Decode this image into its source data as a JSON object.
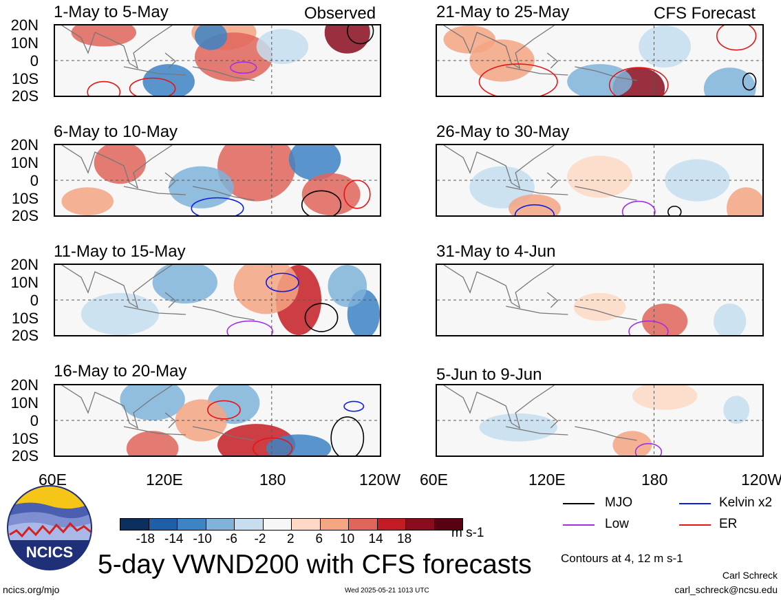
{
  "headers": {
    "observed": "Observed",
    "forecast": "CFS Forecast"
  },
  "panels": [
    {
      "title": "1-May to 5-May"
    },
    {
      "title": "6-May to 10-May"
    },
    {
      "title": "11-May to 15-May"
    },
    {
      "title": "16-May to 20-May"
    },
    {
      "title": "21-May to 25-May"
    },
    {
      "title": "26-May to 30-May"
    },
    {
      "title": "31-May to 4-Jun"
    },
    {
      "title": "5-Jun to 9-Jun"
    }
  ],
  "lat_labels": [
    "20N",
    "10N",
    "0",
    "10S",
    "20S"
  ],
  "lon_labels": [
    "60E",
    "120E",
    "180",
    "120W"
  ],
  "colorbar": {
    "labels": [
      "-18",
      "-14",
      "-10",
      "-6",
      "-2",
      "2",
      "6",
      "10",
      "14",
      "18"
    ],
    "colors": [
      "#0b2f5e",
      "#1f5fa8",
      "#3d84c4",
      "#7fb3d9",
      "#c6def0",
      "#f7f7f7",
      "#fdd9c6",
      "#f4a582",
      "#e0655a",
      "#c41c24",
      "#8a0d1f",
      "#5a0013"
    ],
    "units": "m s-1"
  },
  "legend": [
    {
      "name": "MJO",
      "color": "#000000"
    },
    {
      "name": "Kelvin x2",
      "color": "#0a1ee6"
    },
    {
      "name": "Low",
      "color": "#a02ee6"
    },
    {
      "name": "ER",
      "color": "#e61414"
    }
  ],
  "title": "5-day VWND200 with CFS forecasts",
  "contours_note": "Contours at 4, 12 m s-1",
  "logo_text": "NCICS",
  "footer": {
    "left": "ncics.org/mjo",
    "center": "Wed 2025-05-21 1013 UTC",
    "author": "Carl Schreck",
    "email": "carl_schreck@ncsu.edu"
  }
}
